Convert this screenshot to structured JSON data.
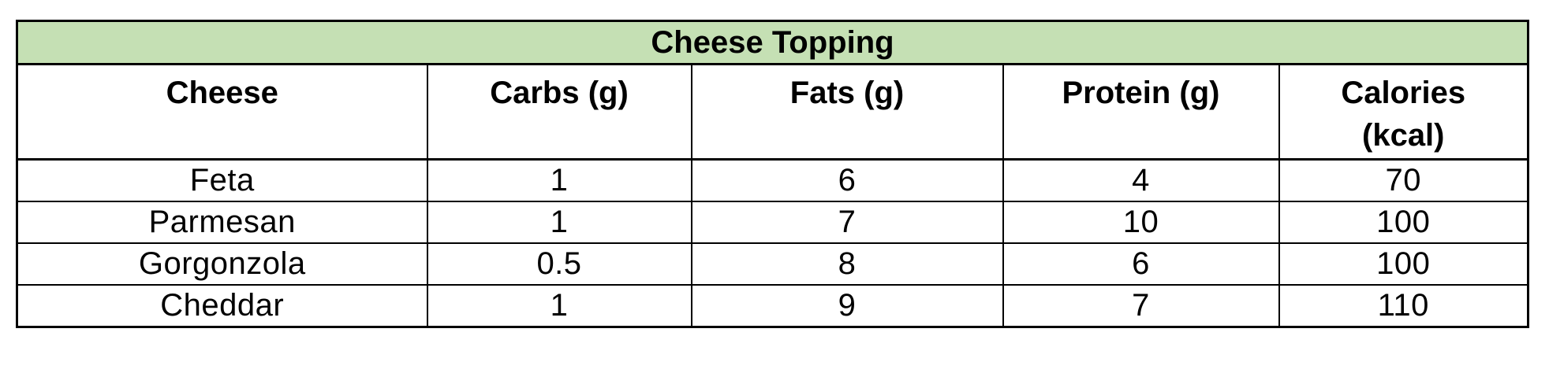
{
  "table": {
    "title": "Cheese Topping",
    "title_bg_color": "#c5e0b4",
    "border_color": "#000000",
    "text_color": "#000000",
    "headers": [
      {
        "label": "Cheese"
      },
      {
        "label": "Carbs (g)"
      },
      {
        "label": "Fats (g)"
      },
      {
        "label": "Protein (g)"
      },
      {
        "label": "Calories",
        "label_line2": "(kcal)"
      }
    ],
    "rows": [
      {
        "cheese": "Feta",
        "carbs": "1",
        "fats": "6",
        "protein": "4",
        "calories": "70"
      },
      {
        "cheese": "Parmesan",
        "carbs": "1",
        "fats": "7",
        "protein": "10",
        "calories": "100"
      },
      {
        "cheese": "Gorgonzola",
        "carbs": "0.5",
        "fats": "8",
        "protein": "6",
        "calories": "100"
      },
      {
        "cheese": "Cheddar",
        "carbs": "1",
        "fats": "9",
        "protein": "7",
        "calories": "110"
      }
    ]
  },
  "chart_data": {
    "type": "table",
    "title": "Cheese Topping",
    "columns": [
      "Cheese",
      "Carbs (g)",
      "Fats (g)",
      "Protein (g)",
      "Calories (kcal)"
    ],
    "rows": [
      [
        "Feta",
        1,
        6,
        4,
        70
      ],
      [
        "Parmesan",
        1,
        7,
        10,
        100
      ],
      [
        "Gorgonzola",
        0.5,
        8,
        6,
        100
      ],
      [
        "Cheddar",
        1,
        9,
        7,
        110
      ]
    ]
  }
}
